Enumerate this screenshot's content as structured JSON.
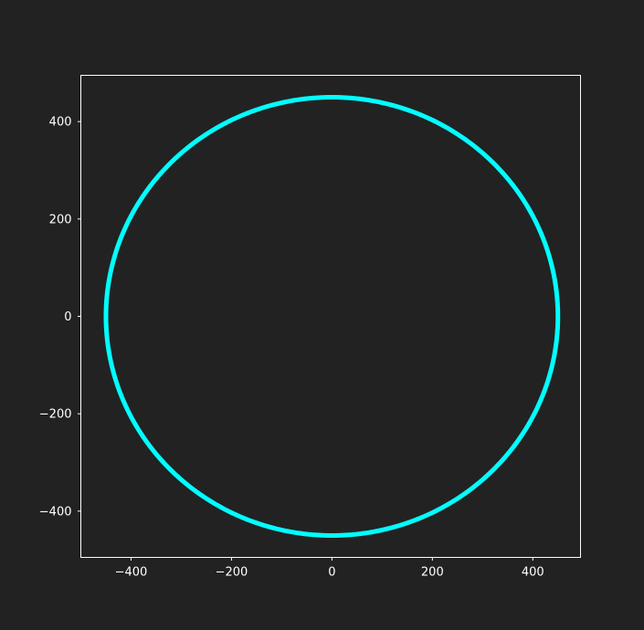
{
  "chart_data": {
    "type": "line",
    "title": "",
    "xlabel": "",
    "ylabel": "",
    "xlim": [
      -500,
      495
    ],
    "ylim": [
      -495,
      495
    ],
    "xticks": [
      -400,
      -200,
      0,
      200,
      400
    ],
    "yticks": [
      -400,
      -200,
      0,
      200,
      400
    ],
    "xtick_labels": [
      "−400",
      "−200",
      "0",
      "200",
      "400"
    ],
    "ytick_labels": [
      "−400",
      "−200",
      "0",
      "200",
      "400"
    ],
    "grid": false,
    "aspect": "equal",
    "series": [
      {
        "shape": "circle",
        "center": [
          0,
          0
        ],
        "radius": 450,
        "color": "#00ffff"
      }
    ]
  },
  "colors": {
    "background": "#222222",
    "axes": "#ffffff",
    "text": "#ffffff",
    "series": "#00ffff"
  }
}
